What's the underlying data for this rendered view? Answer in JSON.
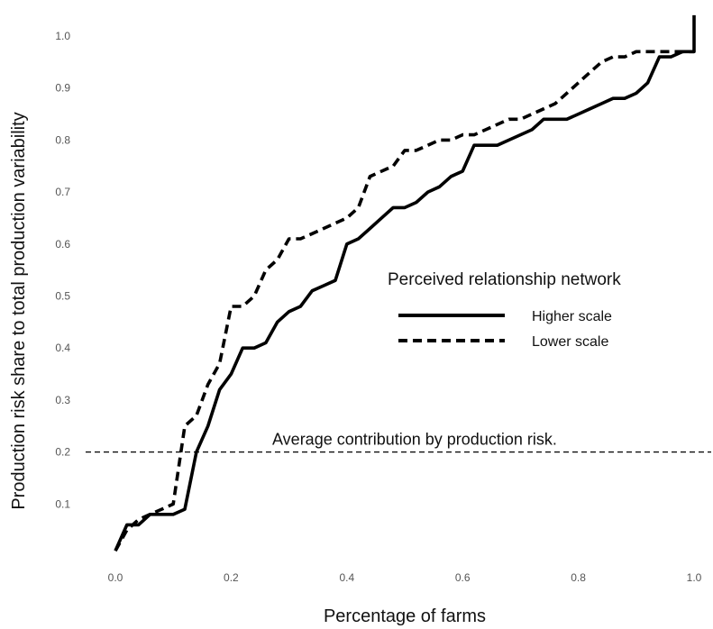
{
  "chart_data": {
    "type": "line",
    "title": "",
    "xlabel": "Percentage of farms",
    "ylabel": "Production risk share to total production variability",
    "xlim": [
      0,
      1
    ],
    "ylim": [
      0,
      1
    ],
    "x_ticks": [
      "0.0",
      "0.2",
      "0.4",
      "0.6",
      "0.8",
      "1.0"
    ],
    "y_ticks": [
      "0.1",
      "0.2",
      "0.3",
      "0.4",
      "0.5",
      "0.6",
      "0.7",
      "0.8",
      "0.9",
      "1.0"
    ],
    "grid": false,
    "legend": {
      "title": "Perceived relationship network",
      "placement": "center-right",
      "entries": [
        {
          "label": "Higher scale",
          "style": "solid"
        },
        {
          "label": "Lower scale",
          "style": "dashed"
        }
      ]
    },
    "reference_line": {
      "y": 0.2,
      "style": "dashed",
      "label": "Average contribution by production risk."
    },
    "series": [
      {
        "name": "Higher scale",
        "style": "solid",
        "color": "#000000",
        "x": [
          0.0,
          0.02,
          0.04,
          0.06,
          0.08,
          0.1,
          0.12,
          0.14,
          0.16,
          0.18,
          0.2,
          0.22,
          0.24,
          0.26,
          0.28,
          0.3,
          0.32,
          0.34,
          0.36,
          0.38,
          0.4,
          0.42,
          0.44,
          0.46,
          0.48,
          0.5,
          0.52,
          0.54,
          0.56,
          0.58,
          0.6,
          0.62,
          0.64,
          0.66,
          0.68,
          0.7,
          0.72,
          0.74,
          0.76,
          0.78,
          0.8,
          0.82,
          0.84,
          0.86,
          0.88,
          0.9,
          0.92,
          0.94,
          0.96,
          0.98,
          1.0,
          1.0
        ],
        "y": [
          0.01,
          0.06,
          0.06,
          0.08,
          0.08,
          0.08,
          0.09,
          0.2,
          0.25,
          0.32,
          0.35,
          0.4,
          0.4,
          0.41,
          0.45,
          0.47,
          0.48,
          0.51,
          0.52,
          0.53,
          0.6,
          0.61,
          0.63,
          0.65,
          0.67,
          0.67,
          0.68,
          0.7,
          0.71,
          0.73,
          0.74,
          0.79,
          0.79,
          0.79,
          0.8,
          0.81,
          0.82,
          0.84,
          0.84,
          0.84,
          0.85,
          0.86,
          0.87,
          0.88,
          0.88,
          0.89,
          0.91,
          0.96,
          0.96,
          0.97,
          0.97,
          1.04
        ]
      },
      {
        "name": "Lower scale",
        "style": "dashed",
        "color": "#000000",
        "x": [
          0.0,
          0.02,
          0.04,
          0.06,
          0.08,
          0.1,
          0.12,
          0.14,
          0.16,
          0.18,
          0.2,
          0.22,
          0.24,
          0.26,
          0.28,
          0.3,
          0.32,
          0.34,
          0.36,
          0.38,
          0.4,
          0.42,
          0.44,
          0.46,
          0.48,
          0.5,
          0.52,
          0.54,
          0.56,
          0.58,
          0.6,
          0.62,
          0.64,
          0.66,
          0.68,
          0.7,
          0.72,
          0.74,
          0.76,
          0.78,
          0.8,
          0.82,
          0.84,
          0.86,
          0.88,
          0.9,
          0.92,
          0.94,
          0.96,
          0.98,
          1.0,
          1.0
        ],
        "y": [
          0.01,
          0.05,
          0.07,
          0.08,
          0.09,
          0.1,
          0.25,
          0.27,
          0.33,
          0.37,
          0.48,
          0.48,
          0.5,
          0.55,
          0.57,
          0.61,
          0.61,
          0.62,
          0.63,
          0.64,
          0.65,
          0.67,
          0.73,
          0.74,
          0.75,
          0.78,
          0.78,
          0.79,
          0.8,
          0.8,
          0.81,
          0.81,
          0.82,
          0.83,
          0.84,
          0.84,
          0.85,
          0.86,
          0.87,
          0.89,
          0.91,
          0.93,
          0.95,
          0.96,
          0.96,
          0.97,
          0.97,
          0.97,
          0.97,
          0.97,
          0.97,
          0.97
        ]
      }
    ]
  }
}
